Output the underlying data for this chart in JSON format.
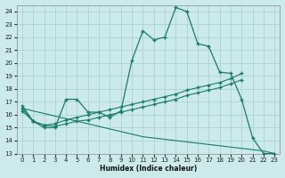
{
  "xlabel": "Humidex (Indice chaleur)",
  "bg_color": "#cceaea",
  "line_color": "#1a7a6a",
  "grid_color": "#aad4d4",
  "x_main": [
    0,
    1,
    2,
    3,
    4,
    5,
    6,
    7,
    8,
    9,
    10,
    11,
    12,
    13,
    14,
    15,
    16,
    17,
    18,
    19,
    20,
    21,
    22,
    23
  ],
  "y_main": [
    16.7,
    15.5,
    15.0,
    15.0,
    17.2,
    17.2,
    16.2,
    16.2,
    15.8,
    16.3,
    20.2,
    22.5,
    21.8,
    22.0,
    24.3,
    24.0,
    21.5,
    21.3,
    19.3,
    19.2,
    17.2,
    14.2,
    13.0,
    13.0
  ],
  "x_reg1": [
    0,
    1,
    2,
    3,
    4,
    5,
    6,
    7,
    8,
    9,
    10,
    11,
    12,
    13,
    14,
    15,
    16,
    17,
    18,
    19,
    20
  ],
  "y_reg1": [
    16.5,
    15.5,
    15.2,
    15.3,
    15.6,
    15.8,
    16.0,
    16.2,
    16.4,
    16.6,
    16.8,
    17.0,
    17.2,
    17.4,
    17.6,
    17.9,
    18.1,
    18.3,
    18.5,
    18.8,
    19.2
  ],
  "x_reg2": [
    0,
    1,
    2,
    3,
    4,
    5,
    6,
    7,
    8,
    9,
    10,
    11,
    12,
    13,
    14,
    15,
    16,
    17,
    18,
    19,
    20
  ],
  "y_reg2": [
    16.3,
    15.5,
    15.2,
    15.1,
    15.3,
    15.5,
    15.6,
    15.8,
    16.0,
    16.2,
    16.4,
    16.6,
    16.8,
    17.0,
    17.2,
    17.5,
    17.7,
    17.9,
    18.1,
    18.4,
    18.7
  ],
  "x_bot": [
    0,
    1,
    2,
    3,
    4,
    5,
    6,
    7,
    8,
    9,
    10,
    11,
    12,
    13,
    14,
    15,
    16,
    17,
    18,
    19,
    20,
    21,
    22,
    23
  ],
  "y_bot": [
    16.5,
    16.3,
    16.1,
    15.9,
    15.7,
    15.5,
    15.3,
    15.1,
    14.9,
    14.7,
    14.5,
    14.3,
    14.2,
    14.1,
    14.0,
    13.9,
    13.8,
    13.7,
    13.6,
    13.5,
    13.4,
    13.3,
    13.2,
    13.0
  ],
  "xlim": [
    -0.5,
    23.5
  ],
  "ylim": [
    13,
    24.5
  ],
  "yticks": [
    13,
    14,
    15,
    16,
    17,
    18,
    19,
    20,
    21,
    22,
    23,
    24
  ],
  "xticks": [
    0,
    1,
    2,
    3,
    4,
    5,
    6,
    7,
    8,
    9,
    10,
    11,
    12,
    13,
    14,
    15,
    16,
    17,
    18,
    19,
    20,
    21,
    22,
    23
  ]
}
